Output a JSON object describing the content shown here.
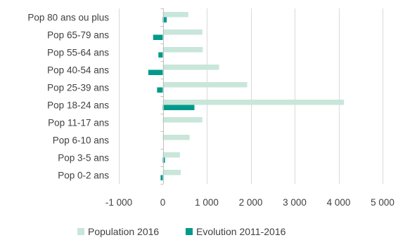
{
  "chart_data": {
    "type": "bar",
    "orientation": "horizontal",
    "categories": [
      "Pop 80 ans ou plus",
      "Pop 65-79 ans",
      "Pop 55-64 ans",
      "Pop 40-54 ans",
      "Pop 25-39 ans",
      "Pop 18-24 ans",
      "Pop 11-17 ans",
      "Pop 6-10 ans",
      "Pop 3-5 ans",
      "Pop 0-2 ans"
    ],
    "series": [
      {
        "name": "Population 2016",
        "color": "#c8e6d9",
        "values": [
          580,
          900,
          910,
          1280,
          1920,
          4120,
          900,
          610,
          390,
          410
        ]
      },
      {
        "name": "Evolution 2011-2016",
        "color": "#009a8c",
        "values": [
          90,
          -220,
          -100,
          -330,
          -130,
          720,
          0,
          0,
          50,
          -50
        ]
      }
    ],
    "xlim": [
      -1000,
      5000
    ],
    "xticks": [
      -1000,
      0,
      1000,
      2000,
      3000,
      4000,
      5000
    ],
    "xtick_labels": [
      "-1 000",
      "0",
      "1 000",
      "2 000",
      "3 000",
      "4 000",
      "5 000"
    ],
    "grid": true,
    "legend_position": "bottom"
  }
}
